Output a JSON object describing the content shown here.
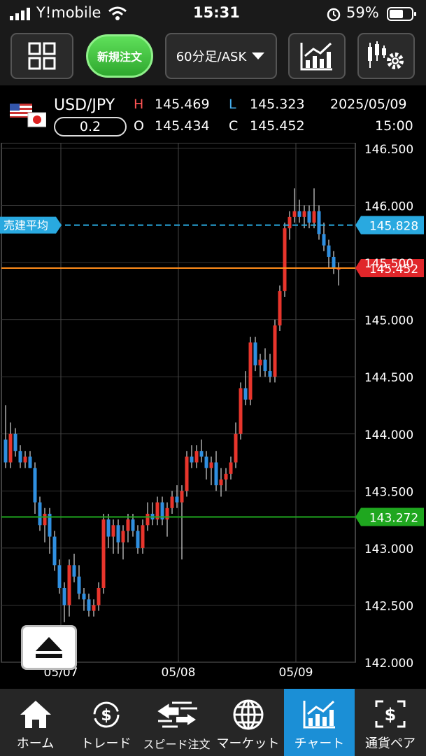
{
  "status_bar": {
    "carrier": "Y!mobile",
    "time": "15:31",
    "battery": "59%"
  },
  "toolbar": {
    "menu_icon": "grid-icon",
    "new_order_label": "新規注文",
    "timeframe_label": "60分足/ASK",
    "indicator_icon": "line-chart-icon",
    "settings_icon": "chart-settings-icon"
  },
  "quote": {
    "pair": "USD/JPY",
    "spread": "0.2",
    "h_label": "H",
    "high": "145.469",
    "l_label": "L",
    "low": "145.323",
    "o_label": "O",
    "open": "145.434",
    "c_label": "C",
    "close": "145.452",
    "date": "2025/05/09",
    "time": "15:00"
  },
  "chart_data": {
    "type": "candlestick",
    "y_ticks": [
      "146.500",
      "146.000",
      "145.500",
      "145.000",
      "144.500",
      "144.000",
      "143.500",
      "143.000",
      "142.500",
      "142.000"
    ],
    "ylim": [
      142.0,
      146.5
    ],
    "x_ticks": [
      {
        "label": "05/07",
        "index": 11
      },
      {
        "label": "05/08",
        "index": 35
      },
      {
        "label": "05/09",
        "index": 59
      }
    ],
    "lines": {
      "avg_sell_label": "売建平均",
      "avg_sell_value": "145.828",
      "current_value": "145.452",
      "lower_value": "143.272"
    },
    "colors": {
      "up": "#e8352c",
      "down": "#2f8fe0",
      "avg": "#29a9e0",
      "current": "#e0262a",
      "lower": "#1fa71f"
    },
    "candles": [
      [
        143.95,
        144.25,
        143.7,
        143.75
      ],
      [
        143.75,
        144.1,
        143.7,
        144.0
      ],
      [
        144.0,
        144.05,
        143.8,
        143.85
      ],
      [
        143.85,
        143.9,
        143.7,
        143.75
      ],
      [
        143.75,
        143.85,
        143.7,
        143.8
      ],
      [
        143.8,
        143.85,
        143.7,
        143.7
      ],
      [
        143.7,
        143.75,
        143.3,
        143.4
      ],
      [
        143.4,
        143.45,
        143.15,
        143.2
      ],
      [
        143.2,
        143.35,
        143.05,
        143.3
      ],
      [
        143.3,
        143.35,
        142.95,
        143.1
      ],
      [
        143.1,
        143.15,
        142.8,
        142.85
      ],
      [
        142.85,
        142.9,
        142.6,
        142.65
      ],
      [
        142.65,
        142.7,
        142.35,
        142.5
      ],
      [
        142.5,
        142.9,
        142.4,
        142.85
      ],
      [
        142.85,
        142.95,
        142.7,
        142.75
      ],
      [
        142.75,
        142.85,
        142.55,
        142.6
      ],
      [
        142.6,
        142.65,
        142.45,
        142.55
      ],
      [
        142.55,
        142.6,
        142.4,
        142.45
      ],
      [
        142.45,
        142.55,
        142.4,
        142.5
      ],
      [
        142.5,
        142.7,
        142.45,
        142.65
      ],
      [
        142.65,
        143.3,
        142.6,
        143.25
      ],
      [
        143.25,
        143.3,
        143.0,
        143.1
      ],
      [
        143.1,
        143.25,
        142.95,
        143.2
      ],
      [
        143.2,
        143.25,
        142.95,
        143.05
      ],
      [
        143.05,
        143.2,
        142.9,
        143.15
      ],
      [
        143.15,
        143.3,
        143.05,
        143.25
      ],
      [
        143.25,
        143.3,
        143.1,
        143.15
      ],
      [
        143.15,
        143.2,
        142.95,
        143.0
      ],
      [
        143.0,
        143.25,
        142.95,
        143.2
      ],
      [
        143.2,
        143.4,
        143.15,
        143.3
      ],
      [
        143.3,
        143.4,
        143.2,
        143.25
      ],
      [
        143.25,
        143.45,
        143.2,
        143.4
      ],
      [
        143.4,
        143.45,
        143.2,
        143.25
      ],
      [
        143.25,
        143.4,
        143.1,
        143.35
      ],
      [
        143.35,
        143.5,
        143.3,
        143.45
      ],
      [
        143.45,
        143.55,
        143.35,
        143.4
      ],
      [
        143.4,
        143.55,
        142.9,
        143.5
      ],
      [
        143.5,
        143.85,
        143.45,
        143.8
      ],
      [
        143.8,
        143.9,
        143.7,
        143.75
      ],
      [
        143.75,
        143.9,
        143.7,
        143.85
      ],
      [
        143.85,
        143.95,
        143.75,
        143.8
      ],
      [
        143.8,
        143.85,
        143.6,
        143.7
      ],
      [
        143.7,
        143.8,
        143.55,
        143.75
      ],
      [
        143.75,
        143.85,
        143.5,
        143.55
      ],
      [
        143.55,
        143.7,
        143.45,
        143.6
      ],
      [
        143.6,
        143.7,
        143.5,
        143.65
      ],
      [
        143.65,
        143.8,
        143.6,
        143.75
      ],
      [
        143.75,
        144.1,
        143.7,
        144.0
      ],
      [
        144.0,
        144.45,
        143.95,
        144.4
      ],
      [
        144.4,
        144.55,
        144.25,
        144.3
      ],
      [
        144.3,
        144.85,
        144.25,
        144.8
      ],
      [
        144.8,
        144.85,
        144.55,
        144.6
      ],
      [
        144.6,
        144.7,
        144.5,
        144.65
      ],
      [
        144.65,
        144.75,
        144.5,
        144.55
      ],
      [
        144.55,
        144.7,
        144.45,
        144.5
      ],
      [
        144.5,
        145.0,
        144.45,
        144.95
      ],
      [
        144.95,
        145.3,
        144.9,
        145.25
      ],
      [
        145.25,
        145.85,
        145.2,
        145.8
      ],
      [
        145.8,
        145.95,
        145.7,
        145.9
      ],
      [
        145.9,
        146.15,
        145.85,
        145.95
      ],
      [
        145.95,
        146.05,
        145.85,
        145.9
      ],
      [
        145.9,
        146.0,
        145.8,
        145.95
      ],
      [
        145.95,
        146.0,
        145.8,
        145.85
      ],
      [
        145.85,
        146.15,
        145.8,
        145.95
      ],
      [
        145.95,
        146.0,
        145.7,
        145.75
      ],
      [
        145.75,
        145.85,
        145.6,
        145.65
      ],
      [
        145.65,
        145.7,
        145.45,
        145.55
      ],
      [
        145.55,
        145.6,
        145.4,
        145.45
      ],
      [
        145.45,
        145.5,
        145.3,
        145.45
      ]
    ]
  },
  "eject_icon": "eject-icon",
  "bottom_nav": [
    {
      "label": "ホーム",
      "icon": "home-icon"
    },
    {
      "label": "トレード",
      "icon": "trade-icon"
    },
    {
      "label": "スピード注文",
      "icon": "speed-order-icon"
    },
    {
      "label": "マーケット",
      "icon": "globe-icon"
    },
    {
      "label": "チャート",
      "icon": "chart-icon"
    },
    {
      "label": "通貨ペア",
      "icon": "currency-pair-icon"
    }
  ]
}
